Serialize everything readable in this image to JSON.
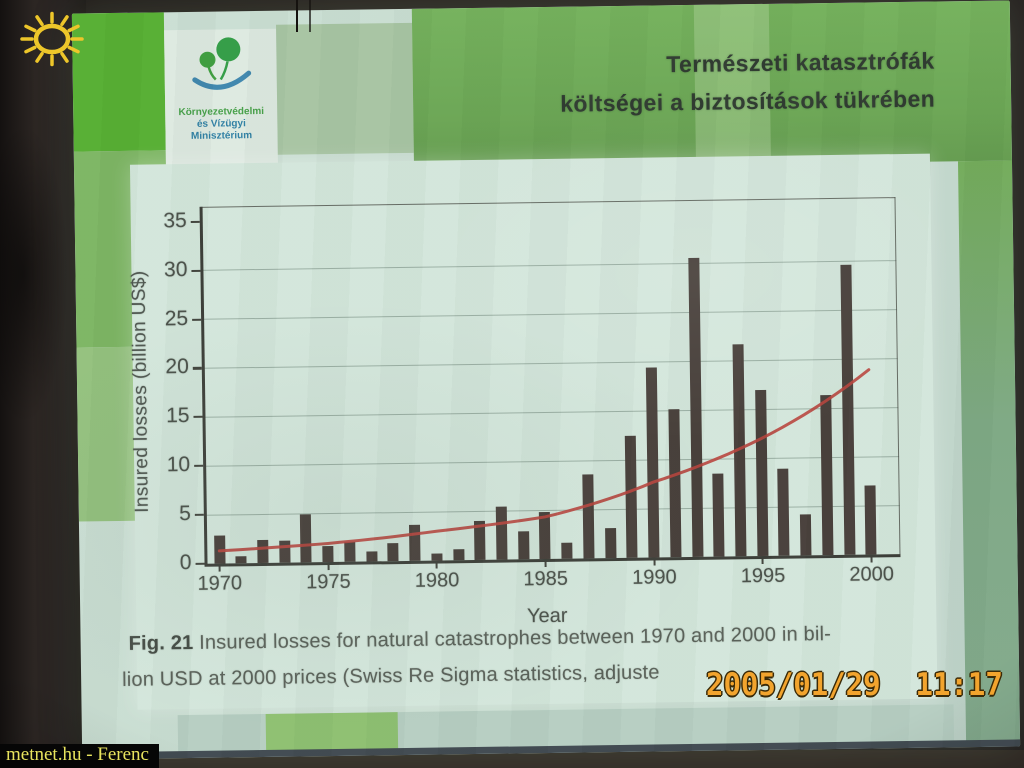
{
  "photo": {
    "timestamp": "2005/01/29  11:17",
    "watermark": "metnet.hu - Ferenc"
  },
  "slide": {
    "title_line1": "Természeti katasztrófák",
    "title_line2": "költségei a biztosítások tükrében",
    "logo": {
      "line1": "Környezetvédelmi",
      "line2": "és Vízügyi",
      "line3": "Minisztérium"
    },
    "caption": {
      "fig_label": "Fig. 21",
      "line1_rest": " Insured losses for natural catastrophes between 1970 and 2000 in bil-",
      "line2": "lion USD at 2000 prices (Swiss Re Sigma statistics, adjuste"
    }
  },
  "chart_data": {
    "type": "bar",
    "title": "",
    "xlabel": "Year",
    "ylabel": "Insured losses (billion US$)",
    "ylim": [
      0,
      35
    ],
    "ytick_step": 5,
    "grid": "horizontal",
    "legend_position": "none",
    "x_ticks": [
      1970,
      1975,
      1980,
      1985,
      1990,
      1995,
      2000
    ],
    "years": [
      1970,
      1971,
      1972,
      1973,
      1974,
      1975,
      1976,
      1977,
      1978,
      1979,
      1980,
      1981,
      1982,
      1983,
      1984,
      1985,
      1986,
      1987,
      1988,
      1989,
      1990,
      1991,
      1992,
      1993,
      1994,
      1995,
      1996,
      1997,
      1998,
      1999,
      2000
    ],
    "values": [
      2.9,
      0.7,
      2.4,
      2.2,
      4.9,
      1.6,
      2.0,
      1.0,
      1.8,
      3.7,
      0.7,
      1.1,
      4.0,
      5.4,
      2.9,
      4.8,
      1.6,
      8.6,
      3.1,
      12.5,
      19.4,
      15.1,
      30.6,
      8.5,
      21.7,
      17.0,
      8.9,
      4.2,
      16.4,
      29.7,
      7.1
    ],
    "trend_line": {
      "name": "exponential trend",
      "anchor_years": [
        1970,
        1975,
        1980,
        1985,
        1990,
        1995,
        2000
      ],
      "anchor_values": [
        1.3,
        1.9,
        3.0,
        4.3,
        7.7,
        12.0,
        18.9
      ]
    },
    "bar_color": "#473e39",
    "trend_color": "#b7433c"
  },
  "colors": {
    "bright_green": "#55ae31",
    "slide_green": "#6fac58",
    "timestamp_orange": "#f2a42e",
    "watermark_yellow": "#e8e45e"
  }
}
